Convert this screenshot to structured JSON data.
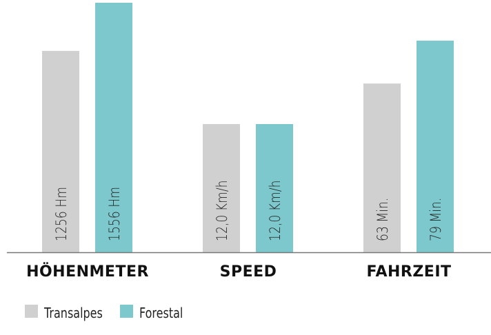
{
  "chart_data": {
    "type": "bar",
    "categories": [
      "HÖHENMETER",
      "SPEED",
      "FAHRZEIT"
    ],
    "series": [
      {
        "name": "Transalpes",
        "color": "#d0d0d0",
        "values": [
          1256,
          12.0,
          63
        ],
        "labels": [
          "1256 Hm",
          "12,0 Km/h",
          "63 Min."
        ]
      },
      {
        "name": "Forestal",
        "color": "#7cc8cc",
        "values": [
          1556,
          12.0,
          79
        ],
        "labels": [
          "1556 Hm",
          "12,0 Km/h",
          "79 Min."
        ]
      }
    ],
    "units": [
      "Hm",
      "Km/h",
      "Min."
    ],
    "grid": false,
    "legend": "bottom-left",
    "baseline_color": "#777777"
  }
}
